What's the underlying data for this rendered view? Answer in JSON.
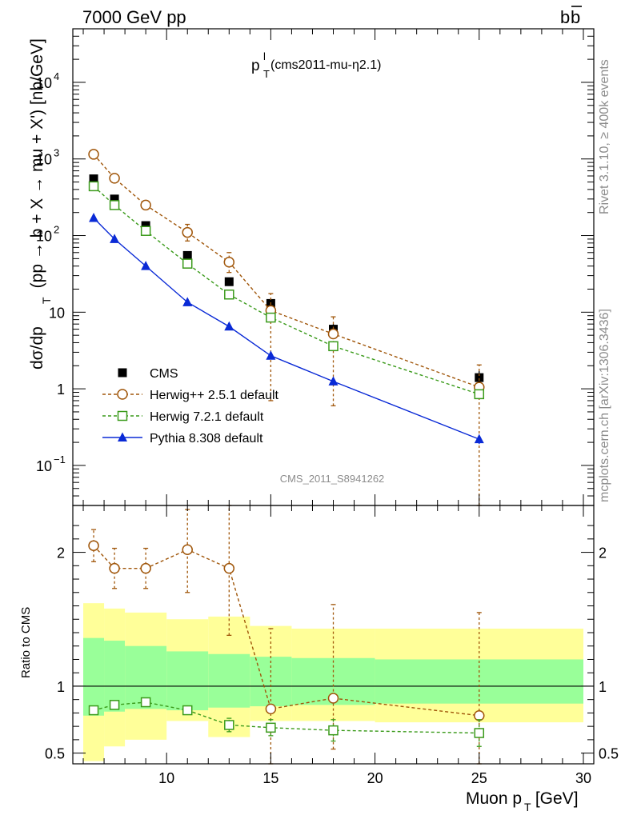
{
  "header": {
    "left": "7000 GeV pp",
    "right_main": "b",
    "right_bar": "b"
  },
  "side": {
    "rivet": "Rivet 3.1.10, ≥ 400k events",
    "mcplots": "mcplots.cern.ch [arXiv:1306.3436]"
  },
  "chart_data": [
    {
      "type": "scatter",
      "title": "p_T^l (cms2011-mu-η2.1)",
      "title_main": "p",
      "title_sup": "l",
      "title_sub": "T",
      "title_rest": " (cms2011-mu-η2.1)",
      "ylabel": "dσ/dp_T (pp → b + X → mu + X') [nb/GeV]",
      "ylabel_parts": [
        "dσ/dp",
        "T",
        "  (pp → b + X → mu + X') [nb/GeV]"
      ],
      "yscale": "log",
      "ylim": [
        0.03,
        50000
      ],
      "xlim": [
        5.5,
        30.5
      ],
      "yticks": [
        {
          "value": 0.1,
          "base": "10",
          "exp": "−1"
        },
        {
          "value": 1,
          "base": "1",
          "exp": ""
        },
        {
          "value": 10,
          "base": "10",
          "exp": ""
        },
        {
          "value": 100,
          "base": "10",
          "exp": "2"
        },
        {
          "value": 1000,
          "base": "10",
          "exp": "3"
        },
        {
          "value": 10000,
          "base": "10",
          "exp": "4"
        }
      ],
      "watermark": "CMS_2011_S8941262",
      "legend_position": "lower-left",
      "x": [
        6.5,
        7.5,
        9,
        11,
        13,
        15,
        18,
        25
      ],
      "series": [
        {
          "name": "CMS",
          "color": "#000000",
          "marker": "square-filled",
          "values": [
            550,
            300,
            135,
            55,
            25,
            13,
            6,
            1.4
          ],
          "yerr_lo": [
            40,
            20,
            10,
            5,
            3,
            2,
            1,
            0.3
          ],
          "yerr_hi": [
            40,
            20,
            10,
            5,
            3,
            2,
            1,
            0.3
          ]
        },
        {
          "name": "Herwig++ 2.5.1 default",
          "color": "#a0560a",
          "marker": "circle-open",
          "dash": true,
          "values": [
            1150,
            560,
            250,
            110,
            45,
            10.5,
            5.2,
            1.05
          ],
          "yerr_lo": [
            80,
            50,
            30,
            25,
            12,
            9.8,
            4.6,
            1.02
          ],
          "yerr_hi": [
            80,
            60,
            35,
            30,
            15,
            7,
            3.5,
            1.0
          ]
        },
        {
          "name": "Herwig 7.2.1 default",
          "color": "#3a9a1a",
          "marker": "square-open",
          "dash": true,
          "values": [
            440,
            250,
            115,
            43,
            17,
            8.5,
            3.6,
            0.85
          ],
          "yerr_lo": [
            20,
            10,
            5,
            2,
            1,
            0.5,
            0.2,
            0.05
          ],
          "yerr_hi": [
            20,
            10,
            5,
            2,
            1,
            0.5,
            0.2,
            0.05
          ]
        },
        {
          "name": "Pythia 8.308 default",
          "color": "#0a2ad6",
          "marker": "triangle-filled",
          "dash": false,
          "values": [
            170,
            90,
            40,
            13.5,
            6.5,
            2.7,
            1.25,
            0.22
          ],
          "yerr_lo": [
            5,
            3,
            1.5,
            0.5,
            0.3,
            0.15,
            0.1,
            0.03
          ],
          "yerr_hi": [
            5,
            3,
            1.5,
            0.5,
            0.3,
            0.15,
            0.1,
            0.03
          ]
        }
      ]
    },
    {
      "type": "scatter",
      "ylabel": "Ratio to CMS",
      "xlabel": "Muon p_T [GeV]",
      "xlabel_parts": [
        "Muon p",
        "T",
        " [GeV]"
      ],
      "ylim": [
        0.42,
        2.35
      ],
      "xlim": [
        5.5,
        30.5
      ],
      "xticks": [
        10,
        15,
        20,
        25,
        30
      ],
      "yticks": [
        {
          "value": 0.5,
          "label": "0.5"
        },
        {
          "value": 1,
          "label": "1"
        },
        {
          "value": 2,
          "label": "2"
        }
      ],
      "bands": [
        {
          "x0": 6,
          "x1": 7,
          "inner": [
            0.78,
            1.36
          ],
          "outer": [
            0.44,
            1.62
          ]
        },
        {
          "x0": 7,
          "x1": 8,
          "inner": [
            0.81,
            1.34
          ],
          "outer": [
            0.55,
            1.58
          ]
        },
        {
          "x0": 8,
          "x1": 10,
          "inner": [
            0.83,
            1.3
          ],
          "outer": [
            0.6,
            1.55
          ]
        },
        {
          "x0": 10,
          "x1": 12,
          "inner": [
            0.82,
            1.26
          ],
          "outer": [
            0.74,
            1.5
          ]
        },
        {
          "x0": 12,
          "x1": 14,
          "inner": [
            0.84,
            1.24
          ],
          "outer": [
            0.62,
            1.52
          ]
        },
        {
          "x0": 14,
          "x1": 16,
          "inner": [
            0.85,
            1.22
          ],
          "outer": [
            0.74,
            1.45
          ]
        },
        {
          "x0": 16,
          "x1": 20,
          "inner": [
            0.86,
            1.21
          ],
          "outer": [
            0.74,
            1.43
          ]
        },
        {
          "x0": 20,
          "x1": 30,
          "inner": [
            0.87,
            1.2
          ],
          "outer": [
            0.73,
            1.43
          ]
        }
      ],
      "series": [
        {
          "name": "Herwig++ 2.5.1 default",
          "color": "#a0560a",
          "marker": "circle-open",
          "dash": true,
          "values": [
            2.05,
            1.88,
            1.88,
            2.02,
            1.88,
            0.83,
            0.91,
            0.78
          ],
          "yerr_lo": [
            0.12,
            0.15,
            0.15,
            0.32,
            0.5,
            0.41,
            0.38,
            0.36
          ],
          "yerr_hi": [
            0.12,
            0.15,
            0.15,
            0.3,
            0.5,
            0.6,
            0.7,
            0.77
          ]
        },
        {
          "name": "Herwig 7.2.1 default",
          "color": "#3a9a1a",
          "marker": "square-open",
          "dash": true,
          "values": [
            0.82,
            0.86,
            0.88,
            0.82,
            0.71,
            0.69,
            0.67,
            0.65
          ],
          "yerr_lo": [
            0.02,
            0.02,
            0.02,
            0.03,
            0.05,
            0.06,
            0.08,
            0.1
          ],
          "yerr_hi": [
            0.02,
            0.02,
            0.02,
            0.03,
            0.05,
            0.06,
            0.08,
            0.1
          ]
        }
      ]
    }
  ]
}
